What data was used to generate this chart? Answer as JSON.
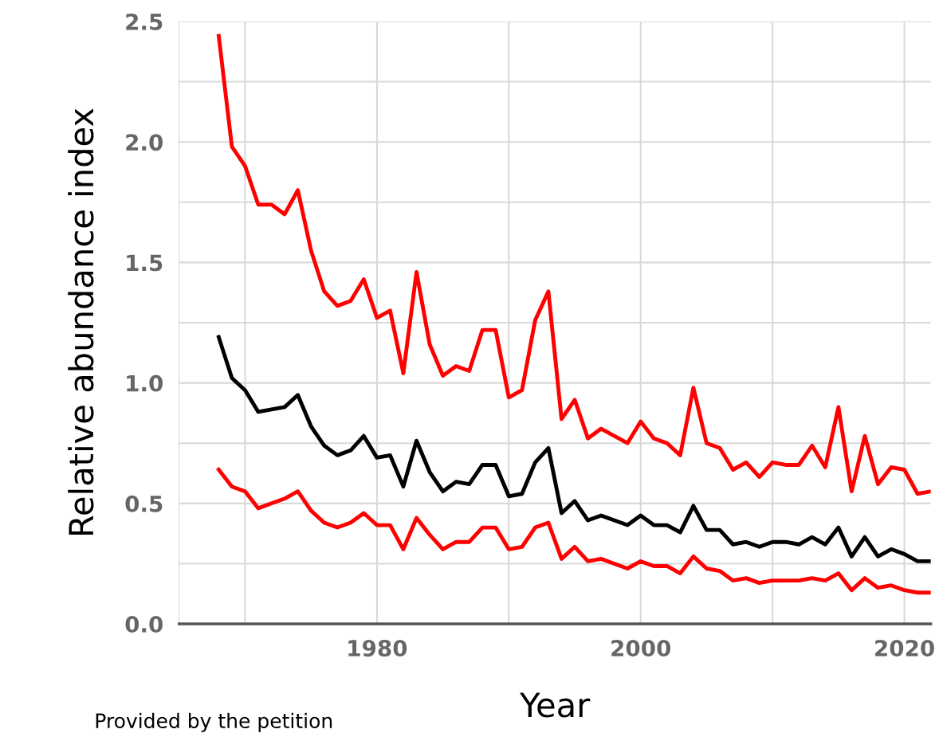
{
  "chart_data": {
    "type": "line",
    "xlabel": "Year",
    "ylabel": "Relative abundance index",
    "annotations": [
      "Provided by the petition"
    ],
    "x": [
      1968,
      1969,
      1970,
      1971,
      1972,
      1973,
      1974,
      1975,
      1976,
      1977,
      1978,
      1979,
      1980,
      1981,
      1982,
      1983,
      1984,
      1985,
      1986,
      1987,
      1988,
      1989,
      1990,
      1991,
      1992,
      1993,
      1994,
      1995,
      1996,
      1997,
      1998,
      1999,
      2000,
      2001,
      2002,
      2003,
      2004,
      2005,
      2006,
      2007,
      2008,
      2009,
      2010,
      2011,
      2012,
      2013,
      2014,
      2015,
      2016,
      2017,
      2018,
      2019,
      2020,
      2021,
      2022
    ],
    "series": [
      {
        "color": "#ff0000",
        "values": [
          2.44,
          1.98,
          1.9,
          1.74,
          1.74,
          1.7,
          1.8,
          1.55,
          1.38,
          1.32,
          1.34,
          1.43,
          1.27,
          1.3,
          1.04,
          1.46,
          1.16,
          1.03,
          1.07,
          1.05,
          1.22,
          1.22,
          0.94,
          0.97,
          1.26,
          1.38,
          0.85,
          0.93,
          0.77,
          0.81,
          0.78,
          0.75,
          0.84,
          0.77,
          0.75,
          0.7,
          0.98,
          0.75,
          0.73,
          0.64,
          0.67,
          0.61,
          0.67,
          0.66,
          0.66,
          0.74,
          0.65,
          0.9,
          0.55,
          0.78,
          0.58,
          0.65,
          0.64,
          0.54,
          0.55
        ]
      },
      {
        "color": "#000000",
        "values": [
          1.19,
          1.02,
          0.97,
          0.88,
          0.89,
          0.9,
          0.95,
          0.82,
          0.74,
          0.7,
          0.72,
          0.78,
          0.69,
          0.7,
          0.57,
          0.76,
          0.63,
          0.55,
          0.59,
          0.58,
          0.66,
          0.66,
          0.53,
          0.54,
          0.67,
          0.73,
          0.46,
          0.51,
          0.43,
          0.45,
          0.43,
          0.41,
          0.45,
          0.41,
          0.41,
          0.38,
          0.49,
          0.39,
          0.39,
          0.33,
          0.34,
          0.32,
          0.34,
          0.34,
          0.33,
          0.36,
          0.33,
          0.4,
          0.28,
          0.36,
          0.28,
          0.31,
          0.29,
          0.26,
          0.26
        ]
      },
      {
        "color": "#ff0000",
        "values": [
          0.64,
          0.57,
          0.55,
          0.48,
          0.5,
          0.52,
          0.55,
          0.47,
          0.42,
          0.4,
          0.42,
          0.46,
          0.41,
          0.41,
          0.31,
          0.44,
          0.37,
          0.31,
          0.34,
          0.34,
          0.4,
          0.4,
          0.31,
          0.32,
          0.4,
          0.42,
          0.27,
          0.32,
          0.26,
          0.27,
          0.25,
          0.23,
          0.26,
          0.24,
          0.24,
          0.21,
          0.28,
          0.23,
          0.22,
          0.18,
          0.19,
          0.17,
          0.18,
          0.18,
          0.18,
          0.19,
          0.18,
          0.21,
          0.14,
          0.19,
          0.15,
          0.16,
          0.14,
          0.13,
          0.13
        ]
      }
    ],
    "xlim": [
      1965,
      2022
    ],
    "xticks": [
      {
        "value": 1970,
        "label": null
      },
      1980,
      {
        "value": 1990,
        "label": null
      },
      2000,
      {
        "value": 2010,
        "label": null
      },
      2020
    ],
    "ylim": [
      0,
      2.5
    ],
    "yticks": [
      {
        "value": 0,
        "label": "0.0"
      },
      {
        "value": 0.25,
        "label": null
      },
      0.5,
      {
        "value": 0.75,
        "label": null
      },
      {
        "value": 1,
        "label": "1.0"
      },
      {
        "value": 1.25,
        "label": null
      },
      1.5,
      {
        "value": 1.75,
        "label": null
      },
      {
        "value": 2,
        "label": "2.0"
      },
      {
        "value": 2.25,
        "label": null
      },
      2.5
    ],
    "grid": true,
    "legend": false,
    "marker": "none",
    "line_style": "solid"
  }
}
